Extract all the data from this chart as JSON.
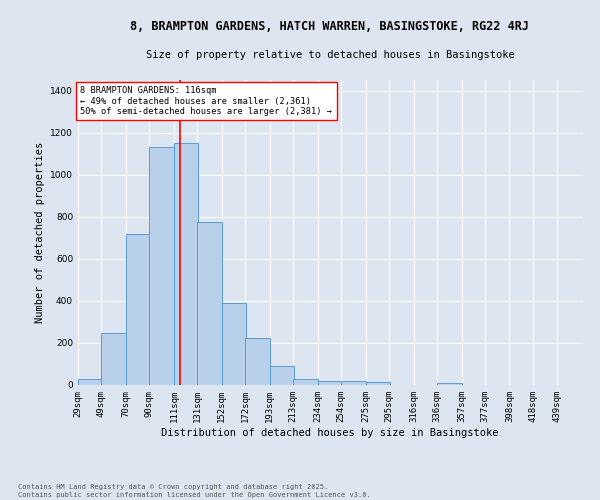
{
  "title": "8, BRAMPTON GARDENS, HATCH WARREN, BASINGSTOKE, RG22 4RJ",
  "subtitle": "Size of property relative to detached houses in Basingstoke",
  "xlabel": "Distribution of detached houses by size in Basingstoke",
  "ylabel": "Number of detached properties",
  "bar_labels": [
    "29sqm",
    "49sqm",
    "70sqm",
    "90sqm",
    "111sqm",
    "131sqm",
    "152sqm",
    "172sqm",
    "193sqm",
    "213sqm",
    "234sqm",
    "254sqm",
    "275sqm",
    "295sqm",
    "316sqm",
    "336sqm",
    "357sqm",
    "377sqm",
    "398sqm",
    "418sqm",
    "439sqm"
  ],
  "bar_values": [
    28,
    248,
    720,
    1130,
    1150,
    775,
    390,
    225,
    90,
    28,
    20,
    18,
    15,
    0,
    0,
    10,
    0,
    0,
    0,
    0,
    0
  ],
  "bar_color": "#b8d0ea",
  "bar_edge_color": "#5b9bd5",
  "vline_x": 116,
  "vline_color": "red",
  "annotation_text": "8 BRAMPTON GARDENS: 116sqm\n← 49% of detached houses are smaller (2,361)\n50% of semi-detached houses are larger (2,381) →",
  "annotation_box_color": "white",
  "annotation_box_edge": "red",
  "ylim": [
    0,
    1450
  ],
  "yticks": [
    0,
    200,
    400,
    600,
    800,
    1000,
    1200,
    1400
  ],
  "bg_color": "#dde6f0",
  "plot_bg_color": "#dde6f0",
  "footnote": "Contains HM Land Registry data © Crown copyright and database right 2025.\nContains public sector information licensed under the Open Government Licence v3.0.",
  "bin_width": 21,
  "title_fontsize": 8.5,
  "subtitle_fontsize": 7.5,
  "ylabel_fontsize": 7.5,
  "xlabel_fontsize": 7.5,
  "tick_fontsize": 6.5,
  "annotation_fontsize": 6.2,
  "footnote_fontsize": 5.0
}
